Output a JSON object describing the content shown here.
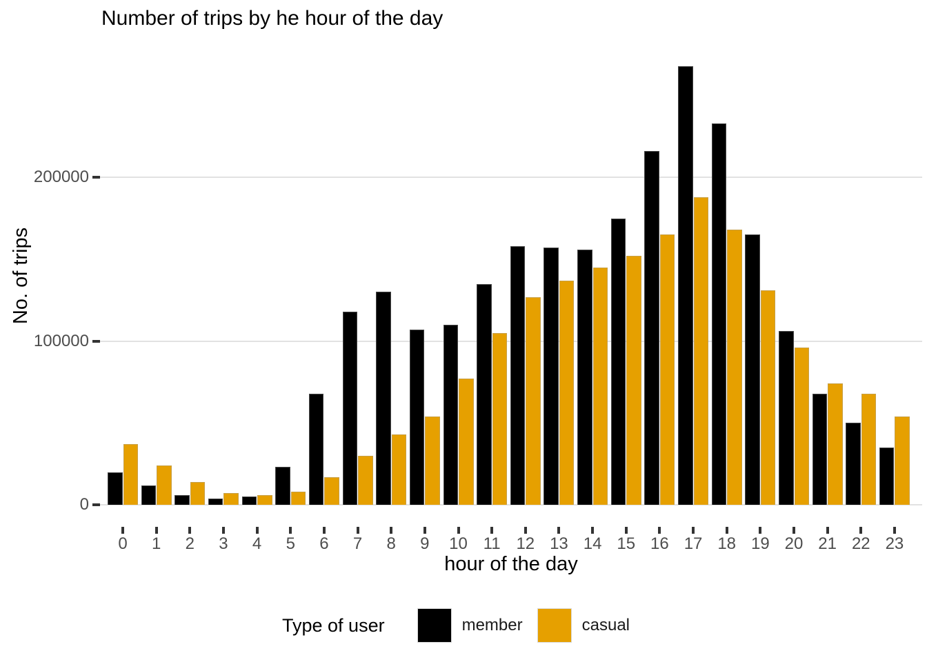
{
  "chart_data": {
    "type": "bar",
    "title": "Number of trips by he hour of the day",
    "xlabel": "hour of the day",
    "ylabel": "No. of trips",
    "categories": [
      "0",
      "1",
      "2",
      "3",
      "4",
      "5",
      "6",
      "7",
      "8",
      "9",
      "10",
      "11",
      "12",
      "13",
      "14",
      "15",
      "16",
      "17",
      "18",
      "19",
      "20",
      "21",
      "22",
      "23"
    ],
    "series": [
      {
        "name": "member",
        "color": "#000000",
        "values": [
          20000,
          12000,
          6000,
          4000,
          5000,
          23000,
          68000,
          118000,
          130000,
          107000,
          110000,
          135000,
          158000,
          157000,
          156000,
          175000,
          216000,
          268000,
          233000,
          165000,
          106000,
          68000,
          50000,
          35000
        ]
      },
      {
        "name": "casual",
        "color": "#E6A000",
        "values": [
          37000,
          24000,
          14000,
          7000,
          6000,
          8000,
          17000,
          30000,
          43000,
          54000,
          77000,
          105000,
          127000,
          137000,
          145000,
          152000,
          165000,
          188000,
          168000,
          131000,
          96000,
          74000,
          68000,
          54000
        ]
      }
    ],
    "ylim": [
      0,
      280000
    ],
    "yticks": [
      0,
      100000,
      200000
    ],
    "grid": "horizontal-major",
    "legend": {
      "title": "Type of user",
      "position": "bottom"
    }
  }
}
